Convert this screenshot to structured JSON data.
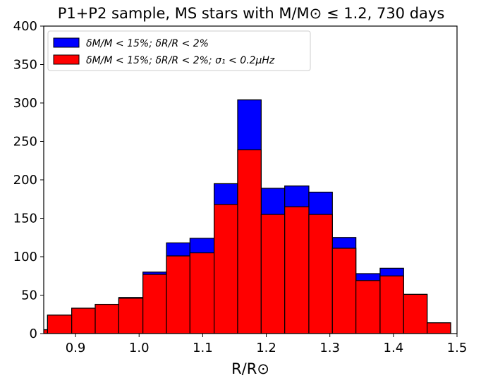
{
  "chart_data": {
    "type": "histogram",
    "title": "P1+P2 sample, MS stars with M/M⊙ ≤ 1.2,   730 days",
    "xlabel": "R/R⊙",
    "bins": [
      0.819,
      0.856,
      0.894,
      0.931,
      0.968,
      1.006,
      1.043,
      1.08,
      1.118,
      1.155,
      1.192,
      1.229,
      1.267,
      1.304,
      1.341,
      1.379,
      1.416,
      1.453,
      1.49
    ],
    "series": [
      {
        "name": "δM/M < 15%; δR/R < 2%",
        "color": "#0000ff",
        "values": [
          5,
          24,
          33,
          38,
          47,
          80,
          118,
          124,
          195,
          304,
          189,
          192,
          184,
          125,
          78,
          85,
          51,
          14
        ]
      },
      {
        "name": "δM/M < 15%; δR/R < 2%;  σ₁ < 0.2μHz",
        "color": "#ff0000",
        "values": [
          5,
          24,
          33,
          38,
          46,
          77,
          101,
          105,
          168,
          239,
          155,
          165,
          155,
          111,
          69,
          75,
          51,
          14
        ]
      }
    ],
    "xlim": [
      0.85,
      1.5
    ],
    "xticks": [
      0.9,
      {
        "value": 1,
        "label": "1.0"
      },
      1.1,
      1.2,
      1.3,
      1.4,
      1.5
    ],
    "ylim": [
      0,
      400
    ],
    "yticks": [
      0,
      50,
      100,
      150,
      200,
      250,
      300,
      350,
      400
    ],
    "legend": "upper left"
  }
}
